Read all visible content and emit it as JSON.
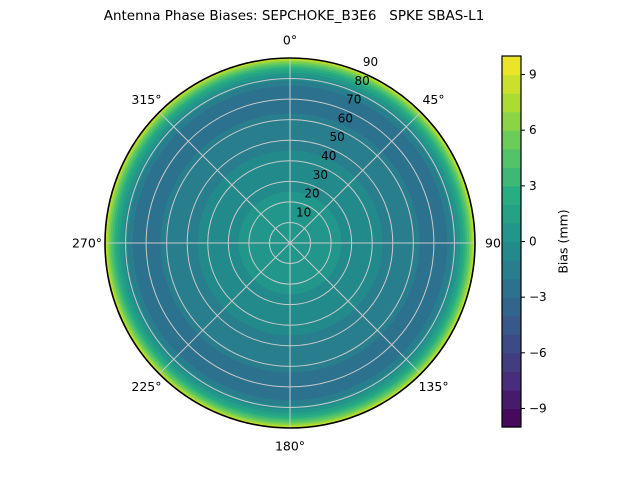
{
  "figure": {
    "background": "#ffffff"
  },
  "chart_data": {
    "type": "polar_filled_contour",
    "title": "Antenna Phase Biases: SEPCHOKE_B3E6   SPKE SBAS-L1",
    "theta_direction": "clockwise_from_north",
    "theta_ticks": [
      {
        "angle_deg": 0,
        "label": "0°"
      },
      {
        "angle_deg": 45,
        "label": "45°"
      },
      {
        "angle_deg": 90,
        "label": "90"
      },
      {
        "angle_deg": 135,
        "label": "135°"
      },
      {
        "angle_deg": 180,
        "label": "180°"
      },
      {
        "angle_deg": 225,
        "label": "225°"
      },
      {
        "angle_deg": 270,
        "label": "270°"
      },
      {
        "angle_deg": 315,
        "label": "315°"
      }
    ],
    "radial_ticks": [
      10,
      20,
      30,
      40,
      50,
      60,
      70,
      80,
      90
    ],
    "radial_axis": {
      "max_zenith_deg": 90,
      "label_angle_deg": 24
    },
    "colorbar": {
      "label": "Bias (mm)",
      "ticks": [
        9,
        6,
        3,
        0,
        -3,
        -6,
        -9
      ],
      "vmin": -10,
      "vmax": 10,
      "level_step_mm": 1,
      "colors_bottom_to_top": [
        "#450a5c",
        "#461b6b",
        "#472d7b",
        "#423c81",
        "#3d4a88",
        "#38588c",
        "#32658d",
        "#2c728e",
        "#287e8d",
        "#238a8c",
        "#22968a",
        "#25a185",
        "#27ad81",
        "#3db875",
        "#52c369",
        "#6ccc59",
        "#8bd446",
        "#aadc32",
        "#cbe02d",
        "#ece527"
      ]
    },
    "radial_profile_mm": [
      {
        "zenith_deg": 0,
        "bias_mm": 0.6
      },
      {
        "zenith_deg": 25,
        "bias_mm": 0.0
      },
      {
        "zenith_deg": 45,
        "bias_mm": -1.0
      },
      {
        "zenith_deg": 63,
        "bias_mm": -2.0
      },
      {
        "zenith_deg": 70,
        "bias_mm": -2.6
      },
      {
        "zenith_deg": 76.5,
        "bias_mm": -2.0
      },
      {
        "zenith_deg": 79,
        "bias_mm": -1.0
      },
      {
        "zenith_deg": 81,
        "bias_mm": 0.0
      },
      {
        "zenith_deg": 82.7,
        "bias_mm": 1.0
      },
      {
        "zenith_deg": 84.1,
        "bias_mm": 2.0
      },
      {
        "zenith_deg": 85.3,
        "bias_mm": 3.0
      },
      {
        "zenith_deg": 86.3,
        "bias_mm": 4.0
      },
      {
        "zenith_deg": 87.2,
        "bias_mm": 5.0
      },
      {
        "zenith_deg": 88.0,
        "bias_mm": 6.0
      },
      {
        "zenith_deg": 88.7,
        "bias_mm": 7.0
      },
      {
        "zenith_deg": 89.3,
        "bias_mm": 8.0
      },
      {
        "zenith_deg": 89.8,
        "bias_mm": 9.0
      },
      {
        "zenith_deg": 90,
        "bias_mm": 9.8
      }
    ],
    "contour_rings": [
      {
        "outer_zenith_deg": 90,
        "bias_band_mm": [
          9,
          10
        ],
        "color": "#ece527"
      },
      {
        "outer_zenith_deg": 89.8,
        "bias_band_mm": [
          8,
          9
        ],
        "color": "#cbe02d"
      },
      {
        "outer_zenith_deg": 89.3,
        "bias_band_mm": [
          7,
          8
        ],
        "color": "#aadc32"
      },
      {
        "outer_zenith_deg": 88.7,
        "bias_band_mm": [
          6,
          7
        ],
        "color": "#8bd446"
      },
      {
        "outer_zenith_deg": 88.0,
        "bias_band_mm": [
          5,
          6
        ],
        "color": "#6ccc59"
      },
      {
        "outer_zenith_deg": 87.2,
        "bias_band_mm": [
          4,
          5
        ],
        "color": "#52c369"
      },
      {
        "outer_zenith_deg": 86.3,
        "bias_band_mm": [
          3,
          4
        ],
        "color": "#3db875"
      },
      {
        "outer_zenith_deg": 85.3,
        "bias_band_mm": [
          2,
          3
        ],
        "color": "#27ad81"
      },
      {
        "outer_zenith_deg": 84.1,
        "bias_band_mm": [
          1,
          2
        ],
        "color": "#25a185"
      },
      {
        "outer_zenith_deg": 82.7,
        "bias_band_mm": [
          0,
          1
        ],
        "color": "#22968a"
      },
      {
        "outer_zenith_deg": 81.0,
        "bias_band_mm": [
          -1,
          0
        ],
        "color": "#238a8c"
      },
      {
        "outer_zenith_deg": 79.0,
        "bias_band_mm": [
          -2,
          -1
        ],
        "color": "#287e8d"
      },
      {
        "outer_zenith_deg": 76.5,
        "bias_band_mm": [
          -3,
          -2
        ],
        "color": "#2c728e"
      },
      {
        "outer_zenith_deg": 63.0,
        "bias_band_mm": [
          -2,
          -1
        ],
        "color": "#287e8d"
      },
      {
        "outer_zenith_deg": 45.0,
        "bias_band_mm": [
          -1,
          0
        ],
        "color": "#238a8c"
      },
      {
        "outer_zenith_deg": 25.0,
        "bias_band_mm": [
          0,
          1
        ],
        "color": "#22968a"
      }
    ]
  }
}
